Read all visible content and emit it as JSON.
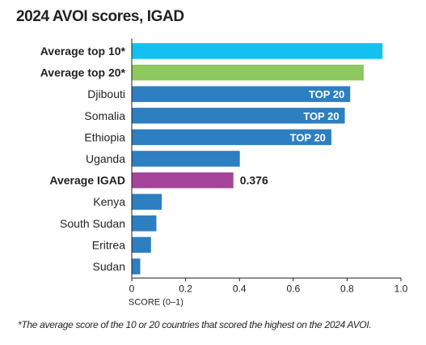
{
  "title": "2024 AVOI scores, IGAD",
  "footnote": "*The average score of the 10 or 20 countries that scored the highest on the 2024 AVOI.",
  "chart_data": {
    "type": "bar",
    "orientation": "horizontal",
    "title": "2024 AVOI scores, IGAD",
    "xlabel": "SCORE (0–1)",
    "ylabel": "",
    "xlim": [
      0,
      1.0
    ],
    "ticks": [
      "0",
      "0.2",
      "0.4",
      "0.6",
      "0.8",
      "1.0"
    ],
    "grid": false,
    "bars": [
      {
        "label": "Average top 10*",
        "value": 0.93,
        "bold": true,
        "color": "#14c0f0",
        "badge": "",
        "value_label": ""
      },
      {
        "label": "Average top 20*",
        "value": 0.86,
        "bold": true,
        "color": "#8dc95e",
        "badge": "",
        "value_label": ""
      },
      {
        "label": "Djibouti",
        "value": 0.81,
        "bold": false,
        "color": "#2d7fc1",
        "badge": "TOP 20",
        "value_label": ""
      },
      {
        "label": "Somalia",
        "value": 0.79,
        "bold": false,
        "color": "#2d7fc1",
        "badge": "TOP 20",
        "value_label": ""
      },
      {
        "label": "Ethiopia",
        "value": 0.74,
        "bold": false,
        "color": "#2d7fc1",
        "badge": "TOP 20",
        "value_label": ""
      },
      {
        "label": "Uganda",
        "value": 0.4,
        "bold": false,
        "color": "#2d7fc1",
        "badge": "",
        "value_label": ""
      },
      {
        "label": "Average IGAD",
        "value": 0.376,
        "bold": true,
        "color": "#a4449a",
        "badge": "",
        "value_label": "0.376"
      },
      {
        "label": "Kenya",
        "value": 0.11,
        "bold": false,
        "color": "#2d7fc1",
        "badge": "",
        "value_label": ""
      },
      {
        "label": "South Sudan",
        "value": 0.09,
        "bold": false,
        "color": "#2d7fc1",
        "badge": "",
        "value_label": ""
      },
      {
        "label": "Eritrea",
        "value": 0.07,
        "bold": false,
        "color": "#2d7fc1",
        "badge": "",
        "value_label": ""
      },
      {
        "label": "Sudan",
        "value": 0.03,
        "bold": false,
        "color": "#2d7fc1",
        "badge": "",
        "value_label": ""
      }
    ]
  }
}
